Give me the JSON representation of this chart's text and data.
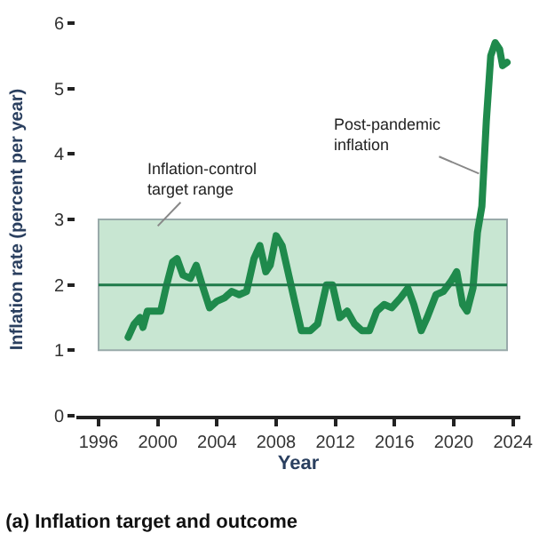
{
  "chart_data": {
    "type": "line",
    "title": "(a) Inflation target and outcome",
    "xlabel": "Year",
    "ylabel": "Inflation rate (percent per year)",
    "x": [
      1998.0,
      1998.4,
      1998.8,
      1999.0,
      1999.3,
      1999.8,
      2000.2,
      2000.6,
      2001.0,
      2001.3,
      2001.7,
      2002.2,
      2002.6,
      2003.0,
      2003.5,
      2004.0,
      2004.5,
      2005.0,
      2005.5,
      2006.0,
      2006.5,
      2006.9,
      2007.3,
      2007.6,
      2008.0,
      2008.4,
      2008.9,
      2009.3,
      2009.7,
      2010.3,
      2010.8,
      2011.4,
      2011.8,
      2012.3,
      2012.8,
      2013.3,
      2013.8,
      2014.3,
      2014.8,
      2015.3,
      2015.8,
      2016.4,
      2016.9,
      2017.3,
      2017.8,
      2018.2,
      2018.8,
      2019.3,
      2019.8,
      2020.2,
      2020.6,
      2020.9,
      2021.3,
      2021.6,
      2021.9,
      2022.2,
      2022.5,
      2022.8,
      2023.1,
      2023.3,
      2023.6
    ],
    "series": [
      {
        "color": "#1f8a4c",
        "values": [
          1.2,
          1.4,
          1.5,
          1.35,
          1.6,
          1.6,
          1.6,
          2.0,
          2.35,
          2.4,
          2.15,
          2.1,
          2.3,
          2.0,
          1.65,
          1.75,
          1.8,
          1.9,
          1.85,
          1.9,
          2.4,
          2.6,
          2.2,
          2.3,
          2.75,
          2.6,
          2.1,
          1.7,
          1.3,
          1.3,
          1.4,
          2.0,
          2.0,
          1.5,
          1.6,
          1.4,
          1.3,
          1.3,
          1.6,
          1.7,
          1.65,
          1.8,
          1.95,
          1.7,
          1.3,
          1.5,
          1.85,
          1.9,
          2.05,
          2.2,
          1.7,
          1.6,
          1.95,
          2.8,
          3.2,
          4.5,
          5.5,
          5.7,
          5.6,
          5.35,
          5.4
        ]
      }
    ],
    "xlim": [
      1994.5,
      2024.5
    ],
    "xticks": [
      1996,
      2000,
      2004,
      2008,
      2012,
      2016,
      2020,
      2024
    ],
    "ylim": [
      0,
      6
    ],
    "yticks": [
      0,
      1,
      2,
      3,
      4,
      5,
      6
    ],
    "bands": [
      {
        "axis": "y",
        "from": 1,
        "to": 3,
        "label": "Inflation-control target range",
        "color": "#c8e6d2"
      }
    ],
    "ref_lines": [
      {
        "axis": "y",
        "value": 2,
        "color": "#1f7a4a",
        "line_style": "solid"
      }
    ],
    "annotations": [
      {
        "text": "Post-pandemic inflation",
        "x": 2021.7,
        "y": 3.7
      }
    ],
    "grid": false,
    "legend": false,
    "line_style": "solid",
    "marker": "none"
  }
}
